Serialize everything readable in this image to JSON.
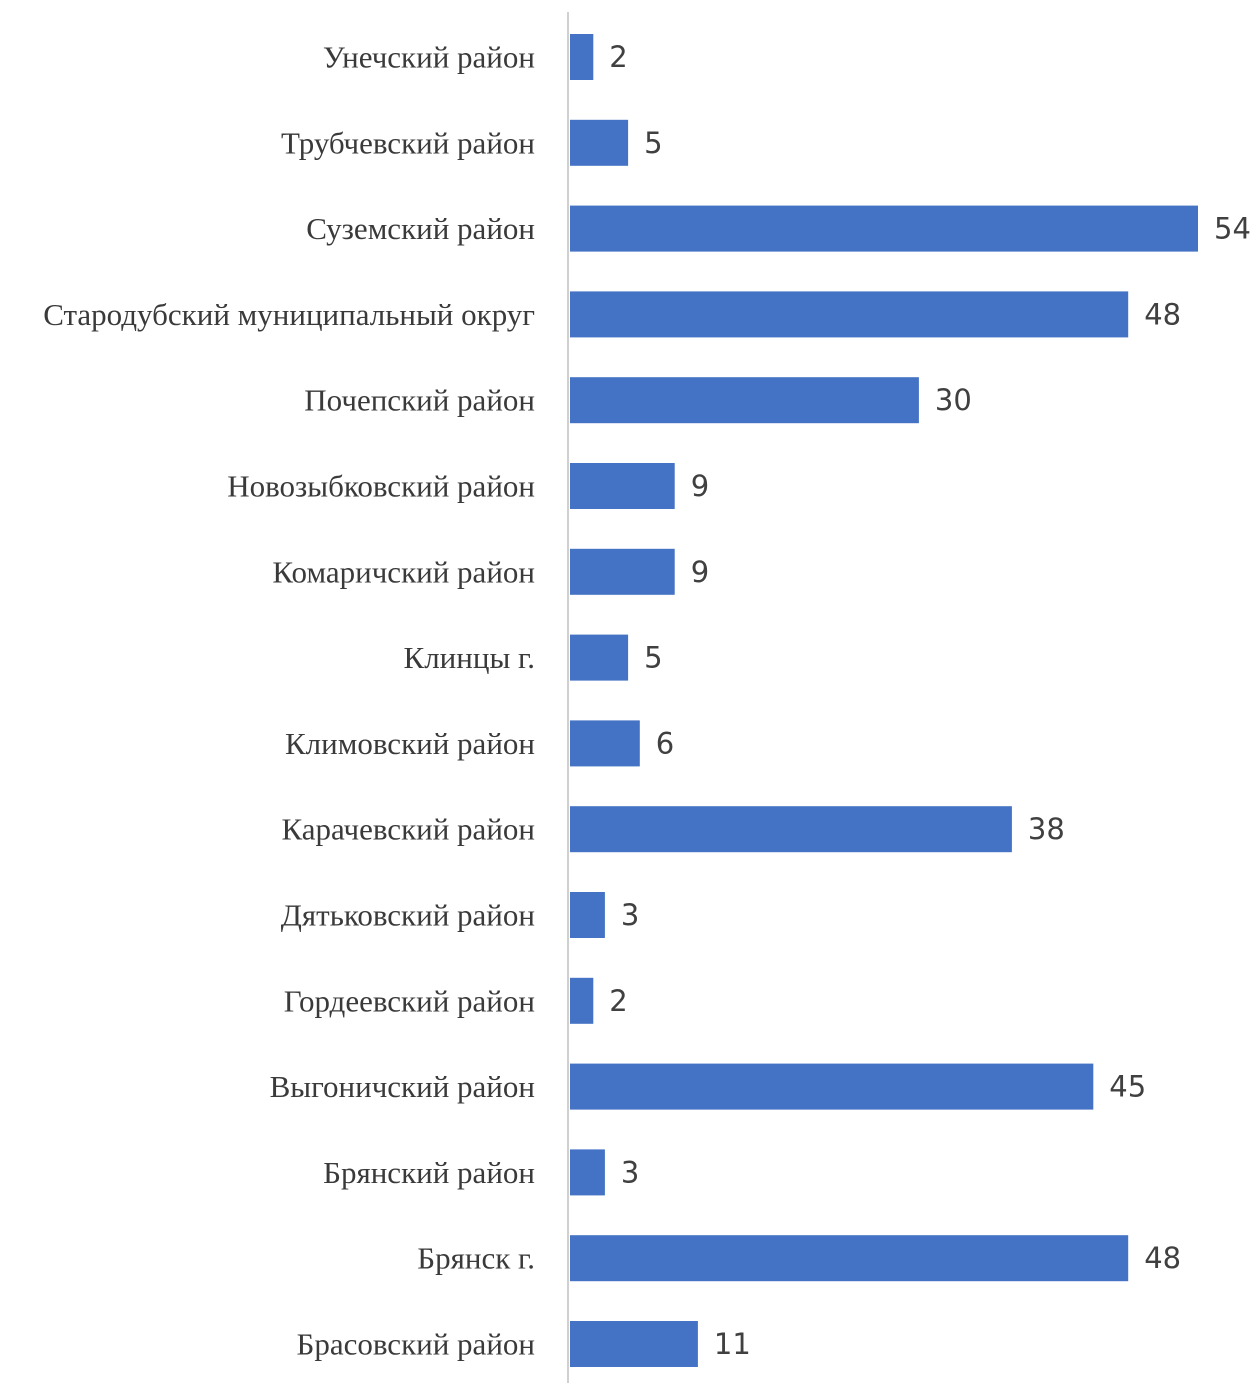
{
  "chart_data": {
    "type": "bar",
    "orientation": "horizontal",
    "categories": [
      "Унечский район",
      "Трубчевский район",
      "Суземский район",
      "Стародубский муниципальный округ",
      "Почепский район",
      "Новозыбковский район",
      "Комаричский район",
      "Клинцы г.",
      "Климовский район",
      "Карачевский район",
      "Дятьковский район",
      "Гордеевский район",
      "Выгоничский район",
      "Брянский район",
      "Брянск г.",
      "Брасовский район"
    ],
    "values": [
      2,
      5,
      54,
      48,
      30,
      9,
      9,
      5,
      6,
      38,
      3,
      2,
      45,
      3,
      48,
      11
    ],
    "title": "",
    "xlabel": "",
    "ylabel": "",
    "xlim": [
      0,
      54
    ],
    "grid": false,
    "legend": "none",
    "bar_color": "#4472C4"
  }
}
